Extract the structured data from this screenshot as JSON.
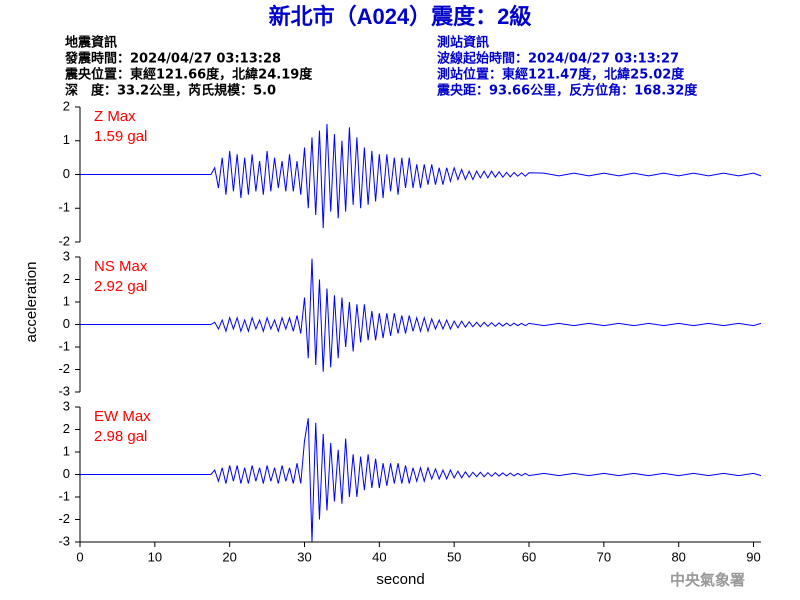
{
  "header": {
    "title": "新北市（A024）震度：2級",
    "left": [
      "地震資訊",
      "發震時間：2024/04/27 03:13:28",
      "震央位置：東經121.66度，北緯24.19度",
      "深　度：33.2公里，芮氏規模：5.0"
    ],
    "right": [
      "測站資訊",
      "波線起始時間：2024/04/27 03:13:27",
      "測站位置：東經121.47度，北緯25.02度",
      "震央距：93.66公里，反方位角：168.32度"
    ],
    "y_label": "acceleration",
    "footer": "中央氣象署"
  },
  "chart_data": [
    {
      "type": "line",
      "annotations": [
        "Z Max",
        "1.59 gal"
      ],
      "color": "#0000ff",
      "xlim": [
        0,
        91
      ],
      "ylim": [
        -2,
        2
      ],
      "yticks": [
        -2,
        -1,
        0,
        1,
        2
      ],
      "x": [
        0,
        17.5,
        18,
        18.5,
        19,
        19.5,
        20,
        20.5,
        21,
        21.5,
        22,
        22.5,
        23,
        23.5,
        24,
        24.5,
        25,
        25.5,
        26,
        26.5,
        27,
        27.5,
        28,
        28.5,
        29,
        29.5,
        30,
        30.5,
        31,
        31.5,
        32,
        32.5,
        33,
        33.5,
        34,
        34.5,
        35,
        35.5,
        36,
        36.5,
        37,
        37.5,
        38,
        38.5,
        39,
        39.5,
        40,
        40.5,
        41,
        41.5,
        42,
        42.5,
        43,
        43.5,
        44,
        44.5,
        45,
        45.5,
        46,
        46.5,
        47,
        47.5,
        48,
        48.5,
        49,
        49.5,
        50,
        50.5,
        51,
        51.5,
        52,
        52.5,
        53,
        53.5,
        54,
        54.5,
        55,
        55.5,
        56,
        56.5,
        57,
        57.5,
        58,
        58.5,
        59,
        59.5,
        60,
        62,
        64,
        66,
        68,
        70,
        72,
        74,
        76,
        78,
        80,
        82,
        84,
        86,
        88,
        90,
        91
      ],
      "values": [
        0,
        0,
        0.2,
        -0.4,
        0.5,
        -0.6,
        0.7,
        -0.5,
        0.6,
        -0.7,
        0.5,
        -0.6,
        0.6,
        -0.5,
        0.4,
        -0.6,
        0.7,
        -0.5,
        0.5,
        -0.4,
        0.4,
        -0.5,
        0.6,
        -0.5,
        0.4,
        -0.6,
        0.8,
        -1.0,
        1.1,
        -1.2,
        1.3,
        -1.59,
        1.5,
        -1.1,
        1.2,
        -1.3,
        1.0,
        -1.1,
        1.4,
        -0.9,
        1.1,
        -1.0,
        0.8,
        -0.9,
        0.7,
        -0.8,
        0.6,
        -0.7,
        0.6,
        -0.5,
        0.5,
        -0.6,
        0.5,
        -0.4,
        0.5,
        -0.4,
        0.3,
        -0.4,
        0.3,
        -0.3,
        0.3,
        -0.3,
        0.2,
        -0.3,
        0.2,
        -0.2,
        0.2,
        -0.15,
        0.15,
        -0.15,
        0.1,
        -0.15,
        0.1,
        -0.1,
        0.1,
        -0.1,
        0.1,
        -0.08,
        0.08,
        -0.08,
        0.06,
        -0.07,
        0.06,
        -0.05,
        0.05,
        -0.05,
        0.05,
        0.04,
        -0.04,
        0.04,
        -0.04,
        0.04,
        -0.04,
        0.04,
        -0.04,
        0.04,
        -0.04,
        0.04,
        -0.04,
        0.04,
        -0.04,
        0.04,
        -0.04
      ]
    },
    {
      "type": "line",
      "annotations": [
        "NS Max",
        "2.92 gal"
      ],
      "color": "#0000ff",
      "xlim": [
        0,
        91
      ],
      "ylim": [
        -3,
        3
      ],
      "yticks": [
        -3,
        -2,
        -1,
        0,
        1,
        2,
        3
      ],
      "x": [
        0,
        17.5,
        18,
        18.5,
        19,
        19.5,
        20,
        20.5,
        21,
        21.5,
        22,
        22.5,
        23,
        23.5,
        24,
        24.5,
        25,
        25.5,
        26,
        26.5,
        27,
        27.5,
        28,
        28.5,
        29,
        29.5,
        30,
        30.5,
        31,
        31.5,
        32,
        32.5,
        33,
        33.5,
        34,
        34.5,
        35,
        35.5,
        36,
        36.5,
        37,
        37.5,
        38,
        38.5,
        39,
        39.5,
        40,
        40.5,
        41,
        41.5,
        42,
        42.5,
        43,
        43.5,
        44,
        44.5,
        45,
        45.5,
        46,
        46.5,
        47,
        47.5,
        48,
        48.5,
        49,
        49.5,
        50,
        50.5,
        51,
        51.5,
        52,
        52.5,
        53,
        53.5,
        54,
        54.5,
        55,
        55.5,
        56,
        56.5,
        57,
        57.5,
        58,
        58.5,
        59,
        59.5,
        60,
        62,
        64,
        66,
        68,
        70,
        72,
        74,
        76,
        78,
        80,
        82,
        84,
        86,
        88,
        90,
        91
      ],
      "values": [
        0,
        0,
        0.1,
        -0.2,
        0.2,
        -0.3,
        0.3,
        -0.2,
        0.3,
        -0.3,
        0.2,
        -0.3,
        0.3,
        -0.2,
        0.2,
        -0.3,
        0.3,
        -0.2,
        0.2,
        -0.3,
        0.3,
        -0.2,
        0.3,
        -0.3,
        0.4,
        -0.4,
        1.2,
        -1.5,
        2.92,
        -1.8,
        2.0,
        -2.1,
        1.6,
        -1.9,
        1.3,
        -1.5,
        1.2,
        -1.0,
        1.0,
        -1.2,
        0.9,
        -0.8,
        0.9,
        -0.7,
        0.6,
        -0.7,
        0.5,
        -0.6,
        0.5,
        -0.5,
        0.5,
        -0.4,
        0.4,
        -0.4,
        0.4,
        -0.3,
        0.3,
        -0.3,
        0.3,
        -0.3,
        0.25,
        -0.2,
        0.2,
        -0.2,
        0.2,
        -0.2,
        0.15,
        -0.15,
        0.15,
        -0.12,
        0.12,
        -0.1,
        0.1,
        -0.1,
        0.1,
        -0.08,
        0.08,
        -0.08,
        0.07,
        -0.07,
        0.06,
        -0.06,
        0.06,
        -0.05,
        0.05,
        -0.05,
        0.05,
        -0.05,
        0.05,
        -0.05,
        0.05,
        -0.05,
        0.05,
        -0.05,
        0.05,
        -0.05,
        0.05,
        -0.05,
        0.05,
        -0.05,
        0.05,
        -0.05,
        0.05
      ]
    },
    {
      "type": "line",
      "annotations": [
        "EW Max",
        "2.98 gal"
      ],
      "color": "#0000ff",
      "xlim": [
        0,
        91
      ],
      "ylim": [
        -3,
        3
      ],
      "yticks": [
        -3,
        -2,
        -1,
        0,
        1,
        2,
        3
      ],
      "xticks": [
        0,
        10,
        20,
        30,
        40,
        50,
        60,
        70,
        80,
        90
      ],
      "xlabel": "second",
      "x": [
        0,
        17.5,
        18,
        18.5,
        19,
        19.5,
        20,
        20.5,
        21,
        21.5,
        22,
        22.5,
        23,
        23.5,
        24,
        24.5,
        25,
        25.5,
        26,
        26.5,
        27,
        27.5,
        28,
        28.5,
        29,
        29.5,
        30,
        30.5,
        31,
        31.5,
        32,
        32.5,
        33,
        33.5,
        34,
        34.5,
        35,
        35.5,
        36,
        36.5,
        37,
        37.5,
        38,
        38.5,
        39,
        39.5,
        40,
        40.5,
        41,
        41.5,
        42,
        42.5,
        43,
        43.5,
        44,
        44.5,
        45,
        45.5,
        46,
        46.5,
        47,
        47.5,
        48,
        48.5,
        49,
        49.5,
        50,
        50.5,
        51,
        51.5,
        52,
        52.5,
        53,
        53.5,
        54,
        54.5,
        55,
        55.5,
        56,
        56.5,
        57,
        57.5,
        58,
        58.5,
        59,
        59.5,
        60,
        62,
        64,
        66,
        68,
        70,
        72,
        74,
        76,
        78,
        80,
        82,
        84,
        86,
        88,
        90,
        91
      ],
      "values": [
        0,
        0,
        0.2,
        -0.3,
        0.3,
        -0.4,
        0.4,
        -0.3,
        0.4,
        -0.4,
        0.3,
        -0.4,
        0.4,
        -0.3,
        0.3,
        -0.4,
        0.4,
        -0.3,
        0.3,
        -0.4,
        0.4,
        -0.3,
        0.3,
        -0.4,
        0.5,
        -0.4,
        1.5,
        2.5,
        -2.98,
        2.3,
        -2.0,
        1.8,
        -1.6,
        1.4,
        -1.2,
        1.1,
        -1.3,
        1.6,
        -1.0,
        0.9,
        -1.0,
        0.8,
        -0.7,
        0.9,
        -0.6,
        0.7,
        -0.6,
        0.5,
        -0.5,
        0.5,
        -0.4,
        0.5,
        -0.4,
        0.4,
        -0.4,
        0.3,
        -0.3,
        0.3,
        -0.3,
        0.3,
        -0.2,
        0.25,
        -0.2,
        0.2,
        -0.2,
        0.2,
        -0.15,
        0.15,
        -0.15,
        0.12,
        -0.12,
        0.1,
        -0.1,
        0.1,
        -0.1,
        0.08,
        -0.08,
        0.08,
        -0.07,
        0.07,
        -0.06,
        0.06,
        -0.06,
        0.05,
        -0.05,
        0.05,
        -0.05,
        0.05,
        -0.05,
        0.05,
        -0.05,
        0.05,
        -0.05,
        0.05,
        -0.05,
        0.05,
        -0.05,
        0.05,
        -0.05,
        0.05,
        -0.05,
        0.05,
        -0.05
      ]
    }
  ]
}
